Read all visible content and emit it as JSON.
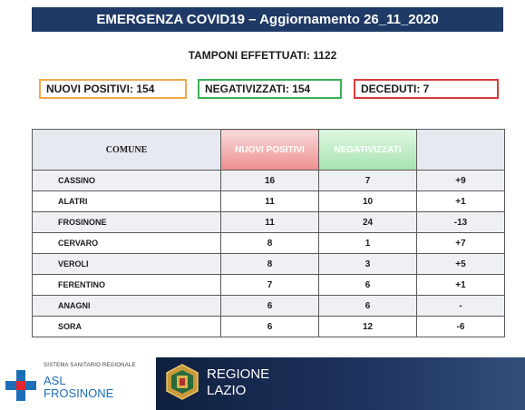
{
  "header": {
    "title": "EMERGENZA COVID19 – Aggiornamento 26_11_2020"
  },
  "tamponi": "TAMPONI EFFETTUATI: 1122",
  "stats": {
    "nuovi_positivi": "NUOVI POSITIVI: 154",
    "negativizzati": "NEGATIVIZZATI: 154",
    "deceduti": "DECEDUTI: 7"
  },
  "table": {
    "columns": [
      "COMUNE",
      "NUOVI POSITIVI",
      "NEGATIVIZZATI",
      ""
    ],
    "rows": [
      [
        "CASSINO",
        "16",
        "7",
        "+9"
      ],
      [
        "ALATRI",
        "11",
        "10",
        "+1"
      ],
      [
        "FROSINONE",
        "11",
        "24",
        "-13"
      ],
      [
        "CERVARO",
        "8",
        "1",
        "+7"
      ],
      [
        "VEROLI",
        "8",
        "3",
        "+5"
      ],
      [
        "FERENTINO",
        "7",
        "6",
        "+1"
      ],
      [
        "ANAGNI",
        "6",
        "6",
        "-"
      ],
      [
        "SORA",
        "6",
        "12",
        "-6"
      ]
    ]
  },
  "logos": {
    "asl_small": "SISTEMA SANITARIO REGIONALE",
    "asl_line1": "ASL",
    "asl_line2": "FROSINONE",
    "regione_line1": "REGIONE",
    "regione_line2": "LAZIO"
  },
  "colors": {
    "header_bg": "#1f3a66",
    "positivi_border": "#f3a745",
    "negativizzati_border": "#3caf5a",
    "deceduti_border": "#d83a3a"
  }
}
